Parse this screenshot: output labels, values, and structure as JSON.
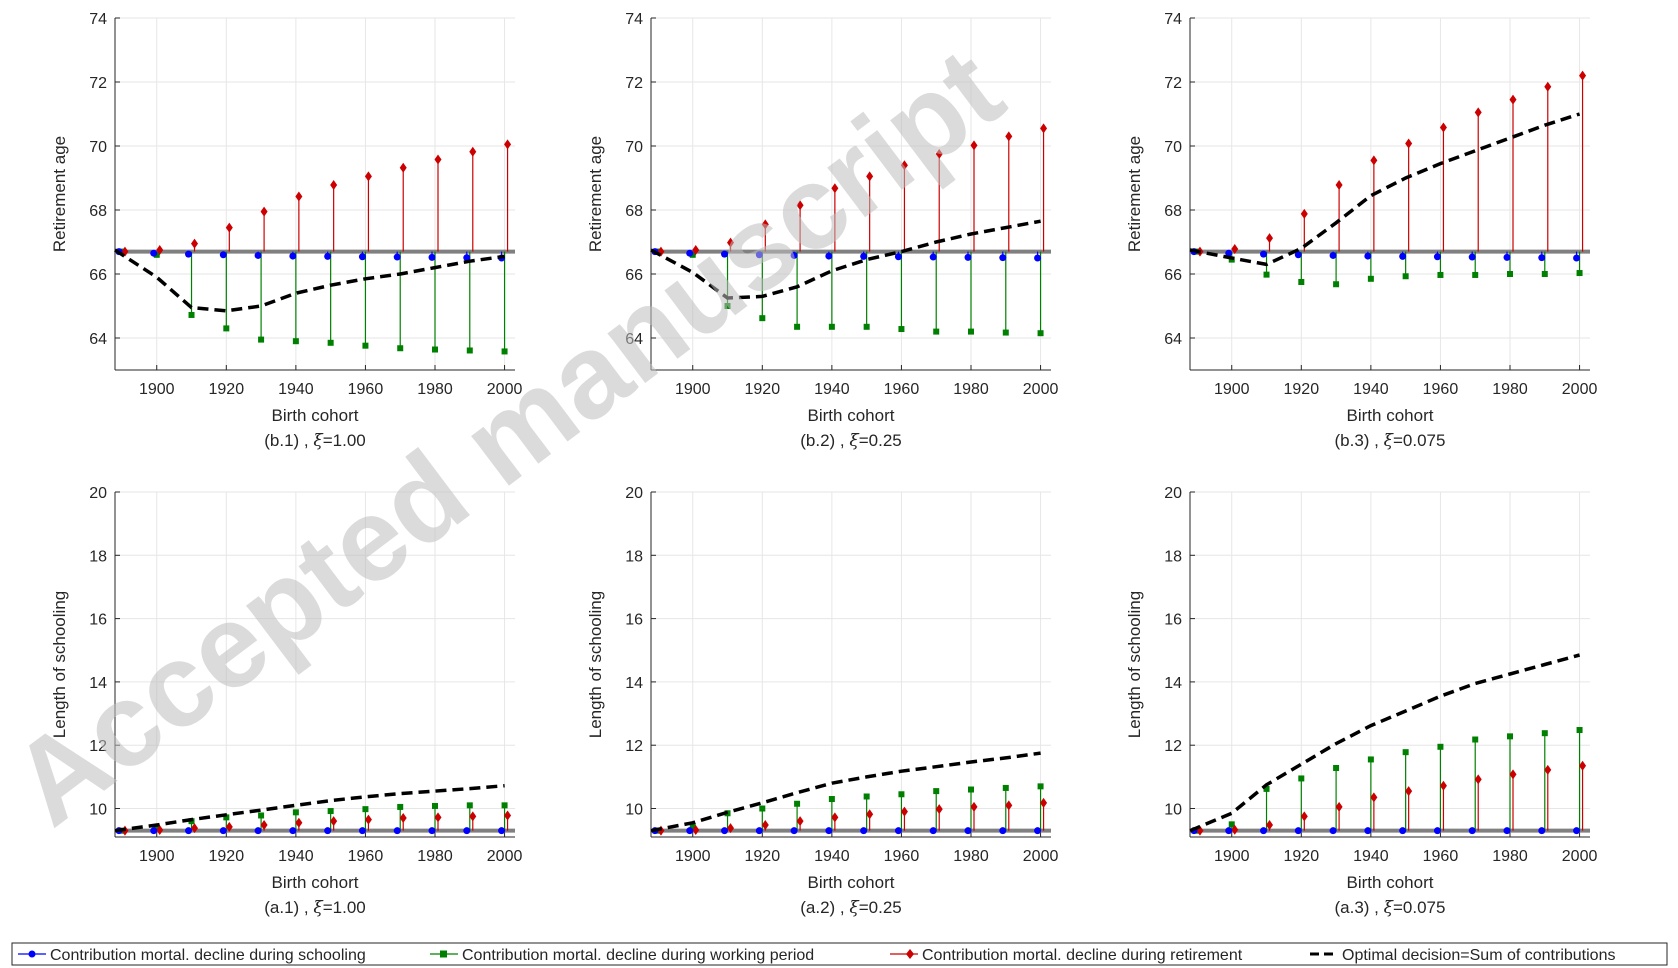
{
  "watermark": "Accepted manuscript",
  "colors": {
    "schooling": "#0000ff",
    "working": "#008000",
    "retirement": "#cc0000",
    "optimal": "#000000",
    "baseline": "#808080",
    "grid": "#e6e6e6",
    "axis": "#262626"
  },
  "legend": {
    "schooling": "Contribution mortal. decline during schooling",
    "working": "Contribution mortal. decline during working period",
    "retirement": "Contribution mortal. decline during retirement",
    "optimal": "Optimal decision=Sum of contributions"
  },
  "chart_data": [
    {
      "type": "line",
      "panel": "b.1",
      "caption_prefix": "(b.1) , ",
      "caption_symbol": "ξ",
      "caption_suffix": "=1.00",
      "xlabel": "Birth cohort",
      "ylabel": "Retirement age",
      "xlim": [
        1888,
        2003
      ],
      "ylim": [
        63,
        74
      ],
      "xticks": [
        1900,
        1920,
        1940,
        1960,
        1980,
        2000
      ],
      "yticks": [
        64,
        66,
        68,
        70,
        72,
        74
      ],
      "grid": true,
      "baseline": 66.7,
      "x": [
        1890,
        1900,
        1910,
        1920,
        1930,
        1940,
        1950,
        1960,
        1970,
        1980,
        1990,
        2000
      ],
      "series": [
        {
          "name": "Contribution mortal. decline during schooling",
          "values": [
            66.7,
            66.65,
            66.62,
            66.6,
            66.58,
            66.56,
            66.55,
            66.54,
            66.53,
            66.52,
            66.51,
            66.5
          ]
        },
        {
          "name": "Contribution mortal. decline during working period",
          "values": [
            66.7,
            66.6,
            64.72,
            64.3,
            63.95,
            63.9,
            63.85,
            63.76,
            63.68,
            63.64,
            63.61,
            63.58
          ]
        },
        {
          "name": "Contribution mortal. decline during retirement",
          "values": [
            66.7,
            66.75,
            66.95,
            67.45,
            67.95,
            68.42,
            68.78,
            69.05,
            69.32,
            69.58,
            69.82,
            70.05
          ]
        },
        {
          "name": "Optimal decision=Sum of contributions",
          "x": [
            1888,
            1900,
            1910,
            1920,
            1930,
            1940,
            1950,
            1960,
            1970,
            1980,
            1990,
            2000
          ],
          "values": [
            66.75,
            65.9,
            64.95,
            64.85,
            65.0,
            65.4,
            65.65,
            65.85,
            66.0,
            66.2,
            66.4,
            66.55
          ]
        }
      ]
    },
    {
      "type": "line",
      "panel": "b.2",
      "caption_prefix": "(b.2) , ",
      "caption_symbol": "ξ",
      "caption_suffix": "=0.25",
      "xlabel": "Birth cohort",
      "ylabel": "Retirement age",
      "xlim": [
        1888,
        2003
      ],
      "ylim": [
        63,
        74
      ],
      "xticks": [
        1900,
        1920,
        1940,
        1960,
        1980,
        2000
      ],
      "yticks": [
        64,
        66,
        68,
        70,
        72,
        74
      ],
      "grid": true,
      "baseline": 66.7,
      "x": [
        1890,
        1900,
        1910,
        1920,
        1930,
        1940,
        1950,
        1960,
        1970,
        1980,
        1990,
        2000
      ],
      "series": [
        {
          "name": "Contribution mortal. decline during schooling",
          "values": [
            66.7,
            66.65,
            66.62,
            66.6,
            66.58,
            66.56,
            66.55,
            66.54,
            66.53,
            66.52,
            66.51,
            66.5
          ]
        },
        {
          "name": "Contribution mortal. decline during working period",
          "values": [
            66.7,
            66.6,
            65.0,
            64.62,
            64.35,
            64.35,
            64.35,
            64.28,
            64.2,
            64.2,
            64.17,
            64.15
          ]
        },
        {
          "name": "Contribution mortal. decline during retirement",
          "values": [
            66.7,
            66.75,
            66.98,
            67.55,
            68.15,
            68.68,
            69.05,
            69.4,
            69.75,
            70.02,
            70.3,
            70.55
          ]
        },
        {
          "name": "Optimal decision=Sum of contributions",
          "x": [
            1888,
            1900,
            1910,
            1920,
            1930,
            1940,
            1950,
            1960,
            1970,
            1980,
            1990,
            2000
          ],
          "values": [
            66.75,
            66.05,
            65.25,
            65.3,
            65.6,
            66.1,
            66.45,
            66.7,
            67.0,
            67.25,
            67.45,
            67.65
          ]
        }
      ]
    },
    {
      "type": "line",
      "panel": "b.3",
      "caption_prefix": "(b.3) , ",
      "caption_symbol": "ξ",
      "caption_suffix": "=0.075",
      "xlabel": "Birth cohort",
      "ylabel": "Retirement age",
      "xlim": [
        1888,
        2003
      ],
      "ylim": [
        63,
        74
      ],
      "xticks": [
        1900,
        1920,
        1940,
        1960,
        1980,
        2000
      ],
      "yticks": [
        64,
        66,
        68,
        70,
        72,
        74
      ],
      "grid": true,
      "baseline": 66.7,
      "x": [
        1890,
        1900,
        1910,
        1920,
        1930,
        1940,
        1950,
        1960,
        1970,
        1980,
        1990,
        2000
      ],
      "series": [
        {
          "name": "Contribution mortal. decline during schooling",
          "values": [
            66.7,
            66.65,
            66.62,
            66.6,
            66.58,
            66.56,
            66.55,
            66.54,
            66.53,
            66.52,
            66.51,
            66.5
          ]
        },
        {
          "name": "Contribution mortal. decline during working period",
          "values": [
            66.7,
            66.45,
            65.98,
            65.75,
            65.68,
            65.85,
            65.93,
            65.97,
            65.97,
            66.0,
            66.0,
            66.03
          ]
        },
        {
          "name": "Contribution mortal. decline during retirement",
          "values": [
            66.7,
            66.78,
            67.12,
            67.88,
            68.78,
            69.55,
            70.08,
            70.58,
            71.05,
            71.45,
            71.85,
            72.2
          ]
        },
        {
          "name": "Optimal decision=Sum of contributions",
          "x": [
            1888,
            1900,
            1910,
            1920,
            1930,
            1940,
            1950,
            1960,
            1970,
            1980,
            1990,
            2000
          ],
          "values": [
            66.75,
            66.5,
            66.3,
            66.8,
            67.6,
            68.45,
            69.0,
            69.45,
            69.85,
            70.25,
            70.65,
            71.0
          ]
        }
      ]
    },
    {
      "type": "line",
      "panel": "a.1",
      "caption_prefix": "(a.1) , ",
      "caption_symbol": "ξ",
      "caption_suffix": "=1.00",
      "xlabel": "Birth cohort",
      "ylabel": "Length of schooling",
      "xlim": [
        1888,
        2003
      ],
      "ylim": [
        9.1,
        20
      ],
      "xticks": [
        1900,
        1920,
        1940,
        1960,
        1980,
        2000
      ],
      "yticks": [
        10,
        12,
        14,
        16,
        18,
        20
      ],
      "grid": true,
      "baseline": 9.3,
      "x": [
        1890,
        1900,
        1910,
        1920,
        1930,
        1940,
        1950,
        1960,
        1970,
        1980,
        1990,
        2000
      ],
      "series": [
        {
          "name": "Contribution mortal. decline during schooling",
          "values": [
            9.3,
            9.3,
            9.3,
            9.3,
            9.3,
            9.3,
            9.3,
            9.3,
            9.3,
            9.3,
            9.3,
            9.3
          ]
        },
        {
          "name": "Contribution mortal. decline during working period",
          "values": [
            9.3,
            9.4,
            9.6,
            9.72,
            9.78,
            9.88,
            9.92,
            9.98,
            10.05,
            10.08,
            10.1,
            10.1
          ]
        },
        {
          "name": "Contribution mortal. decline during retirement",
          "values": [
            9.3,
            9.32,
            9.38,
            9.42,
            9.48,
            9.55,
            9.6,
            9.65,
            9.7,
            9.72,
            9.75,
            9.78
          ]
        },
        {
          "name": "Optimal decision=Sum of contributions",
          "x": [
            1888,
            1900,
            1910,
            1920,
            1930,
            1940,
            1950,
            1960,
            1970,
            1980,
            1990,
            2000
          ],
          "values": [
            9.3,
            9.48,
            9.65,
            9.8,
            9.95,
            10.1,
            10.25,
            10.37,
            10.47,
            10.55,
            10.63,
            10.72
          ]
        }
      ]
    },
    {
      "type": "line",
      "panel": "a.2",
      "caption_prefix": "(a.2) , ",
      "caption_symbol": "ξ",
      "caption_suffix": "=0.25",
      "xlabel": "Birth cohort",
      "ylabel": "Length of schooling",
      "xlim": [
        1888,
        2003
      ],
      "ylim": [
        9.1,
        20
      ],
      "xticks": [
        1900,
        1920,
        1940,
        1960,
        1980,
        2000
      ],
      "yticks": [
        10,
        12,
        14,
        16,
        18,
        20
      ],
      "grid": true,
      "baseline": 9.3,
      "x": [
        1890,
        1900,
        1910,
        1920,
        1930,
        1940,
        1950,
        1960,
        1970,
        1980,
        1990,
        2000
      ],
      "series": [
        {
          "name": "Contribution mortal. decline during schooling",
          "values": [
            9.3,
            9.3,
            9.3,
            9.3,
            9.3,
            9.3,
            9.3,
            9.3,
            9.3,
            9.3,
            9.3,
            9.3
          ]
        },
        {
          "name": "Contribution mortal. decline during working period",
          "values": [
            9.3,
            9.45,
            9.85,
            10.0,
            10.15,
            10.3,
            10.38,
            10.45,
            10.55,
            10.6,
            10.65,
            10.7
          ]
        },
        {
          "name": "Contribution mortal. decline during retirement",
          "values": [
            9.3,
            9.32,
            9.38,
            9.48,
            9.6,
            9.72,
            9.82,
            9.9,
            9.98,
            10.05,
            10.1,
            10.18
          ]
        },
        {
          "name": "Optimal decision=Sum of contributions",
          "x": [
            1888,
            1900,
            1910,
            1920,
            1930,
            1940,
            1950,
            1960,
            1970,
            1980,
            1990,
            2000
          ],
          "values": [
            9.3,
            9.55,
            9.88,
            10.18,
            10.5,
            10.8,
            11.0,
            11.18,
            11.32,
            11.47,
            11.6,
            11.75
          ]
        }
      ]
    },
    {
      "type": "line",
      "panel": "a.3",
      "caption_prefix": "(a.3) , ",
      "caption_symbol": "ξ",
      "caption_suffix": "=0.075",
      "xlabel": "Birth cohort",
      "ylabel": "Length of schooling",
      "xlim": [
        1888,
        2003
      ],
      "ylim": [
        9.1,
        20
      ],
      "xticks": [
        1900,
        1920,
        1940,
        1960,
        1980,
        2000
      ],
      "yticks": [
        10,
        12,
        14,
        16,
        18,
        20
      ],
      "grid": true,
      "baseline": 9.3,
      "x": [
        1890,
        1900,
        1910,
        1920,
        1930,
        1940,
        1950,
        1960,
        1970,
        1980,
        1990,
        2000
      ],
      "series": [
        {
          "name": "Contribution mortal. decline during schooling",
          "values": [
            9.3,
            9.3,
            9.3,
            9.3,
            9.3,
            9.3,
            9.3,
            9.3,
            9.3,
            9.3,
            9.3,
            9.3
          ]
        },
        {
          "name": "Contribution mortal. decline during working period",
          "values": [
            9.3,
            9.5,
            10.62,
            10.95,
            11.28,
            11.55,
            11.78,
            11.95,
            12.18,
            12.28,
            12.38,
            12.48
          ]
        },
        {
          "name": "Contribution mortal. decline during retirement",
          "values": [
            9.3,
            9.33,
            9.48,
            9.75,
            10.05,
            10.35,
            10.55,
            10.72,
            10.92,
            11.08,
            11.22,
            11.35
          ]
        },
        {
          "name": "Optimal decision=Sum of contributions",
          "x": [
            1888,
            1900,
            1910,
            1920,
            1930,
            1940,
            1950,
            1960,
            1970,
            1980,
            1990,
            2000
          ],
          "values": [
            9.3,
            9.85,
            10.75,
            11.4,
            12.05,
            12.62,
            13.08,
            13.55,
            13.95,
            14.25,
            14.55,
            14.85
          ]
        }
      ]
    }
  ]
}
